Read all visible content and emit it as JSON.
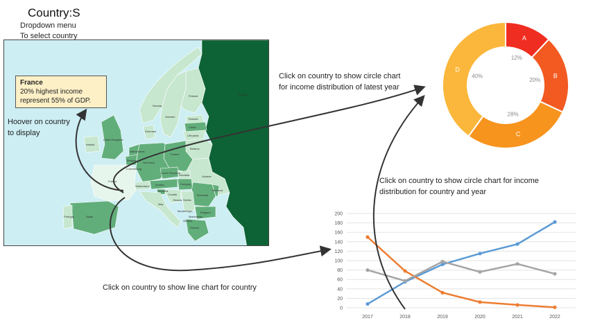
{
  "header": {
    "title": "Country:S",
    "dropdown_note_line1": "Dropdown menu",
    "dropdown_note_line2": "To select country"
  },
  "map": {
    "tooltip": {
      "title": "France",
      "line1": "20% highest income",
      "line2": "represent 55% of GDP."
    },
    "hover_note_line1": "Hoover on country",
    "hover_note_line2": "to display",
    "country_labels": [
      "Ireland",
      "United Kingdom",
      "Norway",
      "Sweden",
      "Finland",
      "Russia",
      "Estonia",
      "Latvia",
      "Lithuania",
      "Belarus",
      "Poland",
      "Germany",
      "Netherlands",
      "Belgium",
      "Luxembourg",
      "France",
      "Switzerland",
      "Czech Republic",
      "Austria",
      "Hungary",
      "Slovakia",
      "Ukraine",
      "Romania",
      "Moldova",
      "Bulgaria",
      "Serbia",
      "Croatia",
      "Italy",
      "Spain",
      "Portugal",
      "Greece",
      "Denmark",
      "Slovenia",
      "Bosnia",
      "Macedonia",
      "Albania",
      "Montenegro"
    ]
  },
  "annotations": {
    "pie_note_line1": "Click on country to show circle chart",
    "pie_note_line2": "for income distribution of latest year",
    "cc_note_line1": "Click on country to show circle chart for income",
    "cc_note_line2": "distribution for country and year",
    "line_note": "Click on country to show  line chart for country"
  },
  "colors": {
    "map_sea": "#cdeef3",
    "map_dark": "#0d6335",
    "map_mid": "#62ae7b",
    "map_light": "#c7e7cf",
    "tooltip_bg": "#fdf0c7",
    "arrow": "#333333",
    "blue": "#5b9bd5",
    "orange": "#ed7d31",
    "gray": "#a5a5a5"
  },
  "chart_data": [
    {
      "type": "pie",
      "variant": "donut",
      "categories": [
        "A",
        "B",
        "C",
        "D"
      ],
      "values": [
        12,
        20,
        28,
        40
      ],
      "value_labels": [
        "12%",
        "20%",
        "28%",
        "40%"
      ],
      "colors": [
        "#ef2d20",
        "#f25a22",
        "#f7941d",
        "#fbb73b"
      ]
    },
    {
      "type": "line",
      "x": [
        "2017",
        "2018",
        "2019",
        "2020",
        "2021",
        "2022"
      ],
      "ylim": [
        0,
        200
      ],
      "yticks": [
        0,
        20,
        40,
        60,
        80,
        100,
        120,
        140,
        160,
        180,
        200
      ],
      "grid": true,
      "series": [
        {
          "color": "#5b9bd5",
          "values": [
            8,
            55,
            92,
            115,
            135,
            182
          ]
        },
        {
          "color": "#ed7d31",
          "values": [
            150,
            78,
            32,
            12,
            6,
            1
          ]
        },
        {
          "color": "#a5a5a5",
          "values": [
            80,
            57,
            98,
            76,
            93,
            72
          ]
        }
      ]
    }
  ]
}
